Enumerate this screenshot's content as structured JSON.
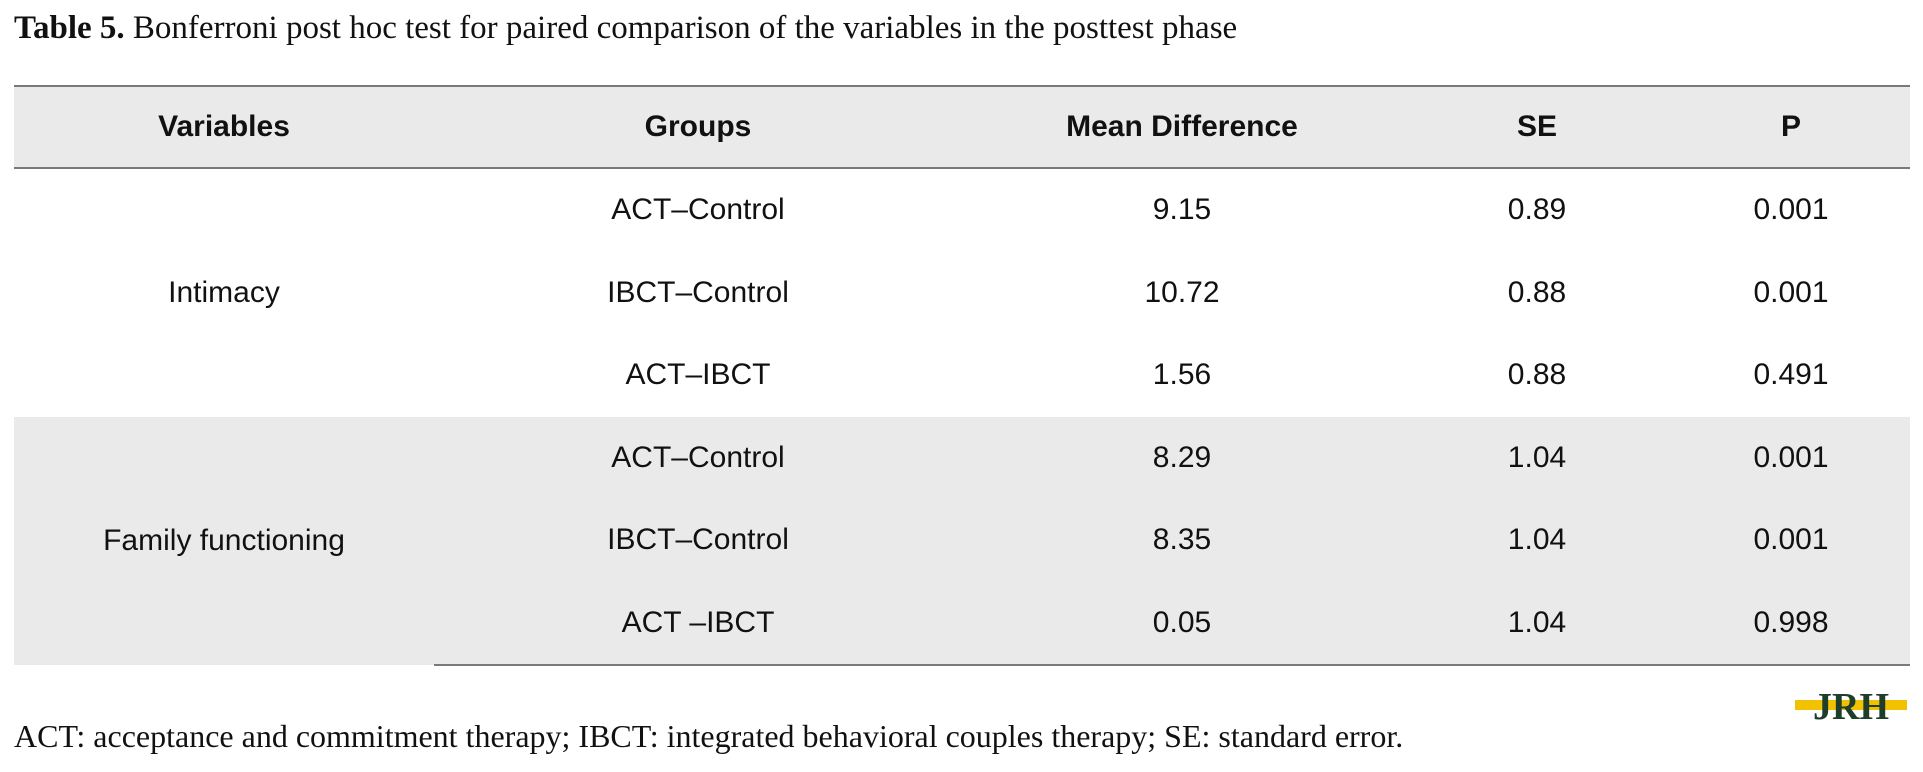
{
  "caption": {
    "label": "Table 5.",
    "text": " Bonferroni post hoc test for paired comparison of the variables in the posttest phase"
  },
  "table": {
    "headers": [
      "Variables",
      "Groups",
      "Mean Difference",
      "SE",
      "P"
    ],
    "groups": [
      {
        "variable": "Intimacy",
        "rows": [
          {
            "group": "ACT–Control",
            "mean_difference": "9.15",
            "se": "0.89",
            "p": "0.001"
          },
          {
            "group": "IBCT–Control",
            "mean_difference": "10.72",
            "se": "0.88",
            "p": "0.001"
          },
          {
            "group": "ACT–IBCT",
            "mean_difference": "1.56",
            "se": "0.88",
            "p": "0.491"
          }
        ]
      },
      {
        "variable": "Family functioning",
        "rows": [
          {
            "group": "ACT–Control",
            "mean_difference": "8.29",
            "se": "1.04",
            "p": "0.001"
          },
          {
            "group": "IBCT–Control",
            "mean_difference": "8.35",
            "se": "1.04",
            "p": "0.001"
          },
          {
            "group": "ACT –IBCT",
            "mean_difference": "0.05",
            "se": "1.04",
            "p": "0.998"
          }
        ]
      }
    ]
  },
  "footnote": "ACT: acceptance and commitment therapy; IBCT: integrated behavioral couples therapy; SE: standard error.",
  "logo": {
    "text": "JRH",
    "colors": {
      "primary": "#1e3d2a",
      "accent": "#f2c200"
    }
  }
}
